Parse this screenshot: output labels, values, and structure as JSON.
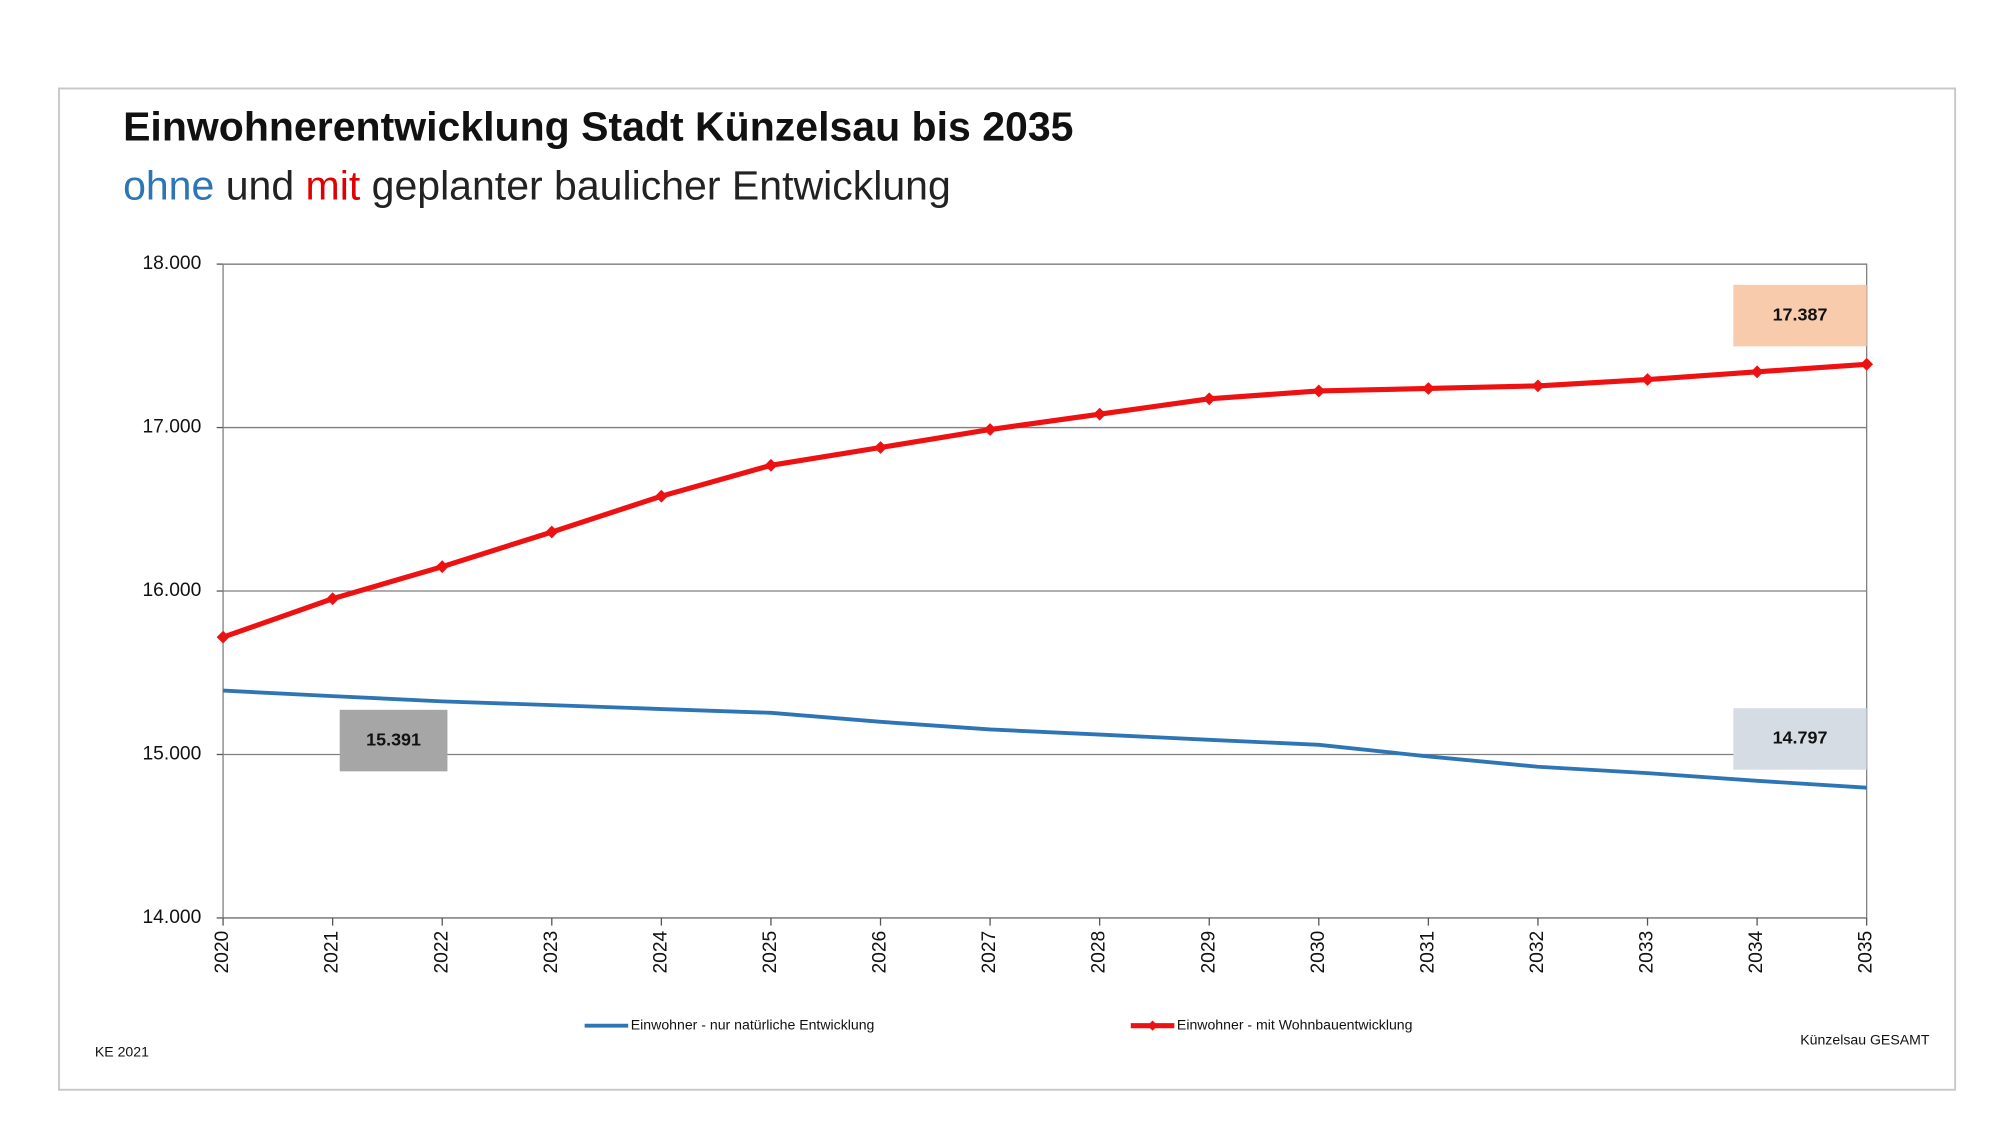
{
  "chart_data": {
    "type": "line",
    "title": "Einwohnerentwicklung Stadt Künzelsau bis 2035",
    "subtitle": [
      {
        "text": "ohne",
        "color": "#2e75b6"
      },
      {
        "text": " und ",
        "color": "#222222"
      },
      {
        "text": "mit",
        "color": "#e00000"
      },
      {
        "text": " geplanter baulicher Entwicklung",
        "color": "#222222"
      }
    ],
    "x": [
      2020,
      2021,
      2022,
      2023,
      2024,
      2025,
      2026,
      2027,
      2028,
      2029,
      2030,
      2031,
      2032,
      2033,
      2034,
      2035
    ],
    "xlim": [
      2020,
      2035
    ],
    "ylim": [
      14000,
      18000
    ],
    "yticks": [
      {
        "value": 14000,
        "label": "14.000"
      },
      {
        "value": 15000,
        "label": "15.000"
      },
      {
        "value": 16000,
        "label": "16.000"
      },
      {
        "value": 17000,
        "label": "17.000"
      },
      {
        "value": 18000,
        "label": "18.000"
      }
    ],
    "grid": true,
    "series": [
      {
        "name": "Einwohner - nur natürliche Entwicklung",
        "color": "#2e75b6",
        "markers": false,
        "values": [
          15391,
          15357,
          15325,
          15302,
          15278,
          15255,
          15200,
          15153,
          15122,
          15090,
          15059,
          14988,
          14925,
          14886,
          14839,
          14797
        ],
        "value_labels": [
          "15.391",
          null,
          null,
          null,
          null,
          null,
          null,
          null,
          null,
          null,
          null,
          null,
          null,
          null,
          null,
          "14.797"
        ],
        "value_label_colors": [
          "#a6a6a6",
          null,
          null,
          null,
          null,
          null,
          null,
          null,
          null,
          null,
          null,
          null,
          null,
          null,
          null,
          "#d6dce4"
        ]
      },
      {
        "name": "Einwohner - mit Wohnbauentwicklung",
        "color": "#ee1111",
        "markers": true,
        "values": [
          15718,
          15953,
          16149,
          16361,
          16580,
          16769,
          16878,
          16988,
          17082,
          17176,
          17224,
          17239,
          17255,
          17294,
          17341,
          17387
        ],
        "value_labels": [
          null,
          null,
          null,
          null,
          null,
          null,
          null,
          null,
          null,
          null,
          null,
          null,
          null,
          null,
          null,
          "17.387"
        ],
        "value_label_colors": [
          null,
          null,
          null,
          null,
          null,
          null,
          null,
          null,
          null,
          null,
          null,
          null,
          null,
          null,
          null,
          "#f8cbad"
        ]
      }
    ],
    "notes": [
      "KE 2021",
      "Künzelsau GESAMT"
    ]
  }
}
